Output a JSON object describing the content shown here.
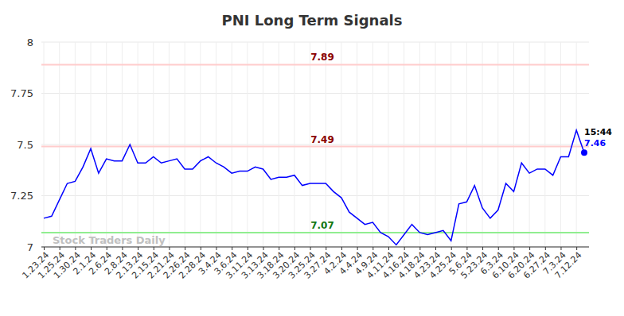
{
  "chart_data": {
    "type": "line",
    "title": "PNI Long Term Signals",
    "categories": [
      "1.23.24",
      null,
      "1.25.24",
      null,
      "1.30.24",
      null,
      "2.1.24",
      null,
      "2.6.24",
      null,
      "2.8.24",
      null,
      "2.13.24",
      null,
      "2.15.24",
      null,
      "2.21.24",
      null,
      "2.26.24",
      null,
      "2.28.24",
      null,
      "3.4.24",
      null,
      "3.6.24",
      null,
      "3.11.24",
      null,
      "3.13.24",
      null,
      "3.18.24",
      null,
      "3.20.24",
      null,
      "3.25.24",
      null,
      "3.27.24",
      null,
      "4.2.24",
      null,
      "4.4.24",
      null,
      "4.9.24",
      null,
      "4.11.24",
      null,
      "4.16.24",
      null,
      "4.18.24",
      null,
      "4.23.24",
      null,
      "4.25.24",
      null,
      "5.6.24",
      null,
      "5.23.24",
      null,
      "6.3.24",
      null,
      "6.10.24",
      null,
      "6.20.24",
      null,
      "6.27.24",
      null,
      "7.3.24",
      null,
      "7.12.24",
      null
    ],
    "series": [
      {
        "name": "PNI",
        "color": "#0000ff",
        "values": [
          7.14,
          7.15,
          7.23,
          7.31,
          7.32,
          7.39,
          7.48,
          7.36,
          7.43,
          7.42,
          7.42,
          7.5,
          7.41,
          7.41,
          7.44,
          7.41,
          7.42,
          7.43,
          7.38,
          7.38,
          7.42,
          7.44,
          7.41,
          7.39,
          7.36,
          7.37,
          7.37,
          7.39,
          7.38,
          7.33,
          7.34,
          7.34,
          7.35,
          7.3,
          7.31,
          7.31,
          7.31,
          7.27,
          7.24,
          7.17,
          7.14,
          7.11,
          7.12,
          7.07,
          7.05,
          7.01,
          7.06,
          7.11,
          7.07,
          7.06,
          7.07,
          7.08,
          7.03,
          7.21,
          7.22,
          7.3,
          7.19,
          7.14,
          7.18,
          7.31,
          7.27,
          7.41,
          7.36,
          7.38,
          7.38,
          7.35,
          7.44,
          7.44,
          7.57,
          7.46
        ]
      }
    ],
    "ylim": [
      7,
      8
    ],
    "yticks": [
      7,
      7.25,
      7.5,
      7.75,
      8
    ],
    "grid": true,
    "reference_lines": [
      {
        "value": 7.89,
        "color": "#ffcccc"
      },
      {
        "value": 7.49,
        "color": "#ffcccc"
      },
      {
        "value": 7.07,
        "color": "#90ee90"
      }
    ],
    "last_point_time": "15:44",
    "watermark": "Stock Traders Daily"
  }
}
